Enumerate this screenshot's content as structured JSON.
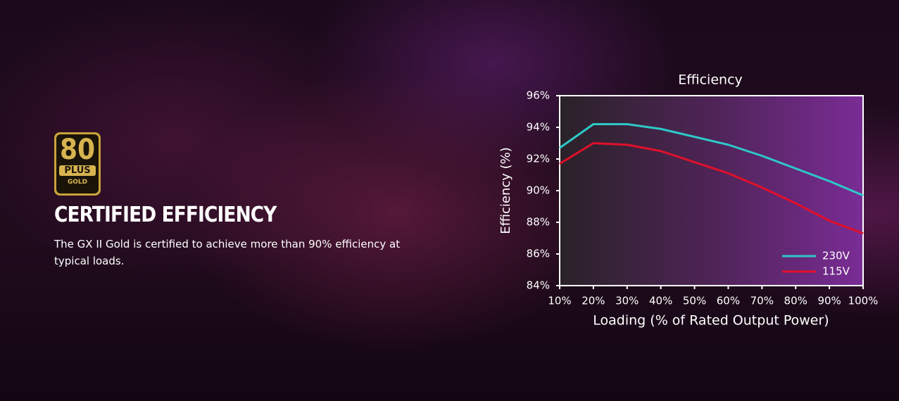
{
  "badge": {
    "number": "80",
    "brand": "PLUS",
    "level": "GOLD"
  },
  "heading": "CERTIFIED EFFICIENCY",
  "description": "The GX II Gold is certified to achieve more than 90% efficiency at typical loads.",
  "chart_data": {
    "type": "line",
    "title": "Efficiency",
    "x_label": "Loading (% of Rated Output Power)",
    "y_label": "Efficiency (%)",
    "x": [
      10,
      20,
      30,
      40,
      50,
      60,
      70,
      80,
      90,
      100
    ],
    "xlim": [
      10,
      100
    ],
    "xticks": [
      {
        "value": 10,
        "label": "10%"
      },
      {
        "value": 20,
        "label": "20%"
      },
      {
        "value": 30,
        "label": "30%"
      },
      {
        "value": 40,
        "label": "40%"
      },
      {
        "value": 50,
        "label": "50%"
      },
      {
        "value": 60,
        "label": "60%"
      },
      {
        "value": 70,
        "label": "70%"
      },
      {
        "value": 80,
        "label": "80%"
      },
      {
        "value": 90,
        "label": "90%"
      },
      {
        "value": 100,
        "label": "100%"
      }
    ],
    "ylim": [
      84,
      96
    ],
    "yticks": [
      {
        "value": 84,
        "label": "84%"
      },
      {
        "value": 86,
        "label": "86%"
      },
      {
        "value": 88,
        "label": "88%"
      },
      {
        "value": 90,
        "label": "90%"
      },
      {
        "value": 92,
        "label": "92%"
      },
      {
        "value": 94,
        "label": "94%"
      },
      {
        "value": 96,
        "label": "96%"
      }
    ],
    "legend": "lower right",
    "series": [
      {
        "name": "230V",
        "color": "#2ec8c8",
        "values": [
          92.7,
          94.2,
          94.2,
          93.9,
          93.4,
          92.9,
          92.2,
          91.4,
          90.6,
          89.7
        ]
      },
      {
        "name": "115V",
        "color": "#e0102a",
        "values": [
          91.7,
          93.0,
          92.9,
          92.5,
          91.8,
          91.1,
          90.2,
          89.2,
          88.1,
          87.3
        ]
      }
    ]
  }
}
